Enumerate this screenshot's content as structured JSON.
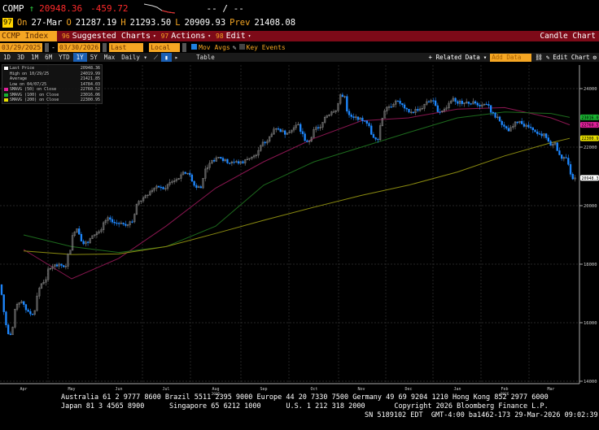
{
  "quote": {
    "ticker": "COMP",
    "arrow": "↑",
    "last": "20948.36",
    "change": "-459.72",
    "bidask": "-- / --",
    "icon": "97",
    "on_label": "On",
    "date": "27-Mar",
    "o_label": "O",
    "open": "21287.19",
    "h_label": "H",
    "high": "21293.50",
    "l_label": "L",
    "low": "20909.93",
    "prev_label": "Prev",
    "prev": "21408.08"
  },
  "menubar": {
    "security": "CCMP Index",
    "suggested_num": "96",
    "suggested": "Suggested Charts",
    "actions_num": "97",
    "actions": "Actions",
    "edit_num": "98",
    "edit": "Edit",
    "title": "Candle Chart"
  },
  "controls": {
    "start_date": "03/29/2025",
    "end_date": "03/30/2026",
    "field": "Last Price",
    "currency": "Local CCY",
    "mov_avgs": "Mov Avgs",
    "mov_avgs_checked": true,
    "key_events": "Key Events",
    "key_events_checked": false
  },
  "toolbar": {
    "periods": [
      "1D",
      "3D",
      "1M",
      "6M",
      "YTD",
      "1Y",
      "5Y",
      "Max"
    ],
    "active_period": "1Y",
    "frequency": "Daily",
    "table": "Table",
    "related": "+ Related Data",
    "add_data_placeholder": "Add Data",
    "edit_chart": "Edit Chart"
  },
  "legend": [
    {
      "label": "Last Price",
      "value": "20948.36",
      "color": "#ffffff"
    },
    {
      "label": "High on 10/29/25",
      "value": "24019.99",
      "color": ""
    },
    {
      "label": "Average",
      "value": "21421.85",
      "color": ""
    },
    {
      "label": "Low on 04/07/25",
      "value": "14784.03",
      "color": ""
    },
    {
      "label": "SMAVG (50)  on Close",
      "value": "22760.52",
      "color": "#e0209a"
    },
    {
      "label": "SMAVG (100)  on Close",
      "value": "23016.06",
      "color": "#18b030"
    },
    {
      "label": "SMAVG (200)  on Close",
      "value": "22300.95",
      "color": "#e8e000"
    }
  ],
  "chart_data": {
    "type": "candlestick",
    "ylim": [
      14000,
      24300
    ],
    "yticks": [
      14000,
      16000,
      18000,
      20000,
      22000,
      24000
    ],
    "ytick_labels": [
      "14000",
      "16000",
      "18000",
      "20000",
      "22000",
      "24000"
    ],
    "xticks": [
      "Apr",
      "May",
      "Jun",
      "Jul",
      "Aug",
      "Sep",
      "Oct",
      "Nov",
      "Dec",
      "Jan",
      "Feb",
      "Mar"
    ],
    "year_labels": [
      {
        "month": "Aug",
        "year": "2025"
      },
      {
        "month": "Feb",
        "year": "2026"
      }
    ],
    "grid": true,
    "up_color": "#888888",
    "down_color": "#1e88ff",
    "weekly_close": [
      15588,
      16724,
      16286,
      17383,
      17978,
      17929,
      19211,
      18737,
      19113,
      19530,
      19406,
      19447,
      20273,
      20601,
      20585,
      20896,
      21108,
      20650,
      21450,
      21622,
      21496,
      21455,
      21700,
      22141,
      22631,
      22484,
      22780,
      22204,
      22680,
      23204,
      23725,
      23005,
      22900,
      22273,
      23366,
      23578,
      23195,
      23307,
      23593,
      23242,
      23671,
      23515,
      23501,
      23461,
      23031,
      22547,
      22886,
      22668,
      22387,
      22105,
      21647,
      20948
    ],
    "first_open": 17300,
    "ma_months": [
      "Apr",
      "May",
      "Jun",
      "Jul",
      "Aug",
      "Sep",
      "Oct",
      "Nov",
      "Dec",
      "Jan",
      "Feb",
      "Mar",
      "end"
    ],
    "series": [
      {
        "name": "SMAVG (50)",
        "color": "#8a1650",
        "values": [
          18500,
          17500,
          18200,
          19300,
          20600,
          21500,
          22300,
          22900,
          23000,
          23300,
          23350,
          23000,
          22760
        ]
      },
      {
        "name": "SMAVG (100)",
        "color": "#1d6a1d",
        "values": [
          19000,
          18600,
          18400,
          18600,
          19300,
          20700,
          21500,
          22000,
          22500,
          23000,
          23200,
          23150,
          23016
        ]
      },
      {
        "name": "SMAVG (200)",
        "color": "#8a8a10",
        "values": [
          18450,
          18330,
          18350,
          18600,
          19050,
          19500,
          19950,
          20350,
          20700,
          21150,
          21700,
          22150,
          22300
        ]
      }
    ],
    "price_tags": [
      {
        "value": 23016.06,
        "label": "23016.06",
        "color": "#18b030"
      },
      {
        "value": 22760.52,
        "label": "22760.52",
        "color": "#e0209a"
      },
      {
        "value": 22300.95,
        "label": "22300.95",
        "color": "#e8e000"
      },
      {
        "value": 20948.36,
        "label": "20948.36",
        "color": "#ffffff"
      }
    ]
  },
  "footer": {
    "line1": "Australia 61 2 9777 8600 Brazil 5511 2395 9000 Europe 44 20 7330 7500 Germany 49 69 9204 1210 Hong Kong 852 2977 6000",
    "line2": "Japan 81 3 4565 8900      Singapore 65 6212 1000      U.S. 1 212 318 2000       Copyright 2026 Bloomberg Finance L.P.",
    "line3": "SN 5189102 EDT  GMT-4:00 ba1462-173 29-Mar-2026 09:02:39"
  }
}
